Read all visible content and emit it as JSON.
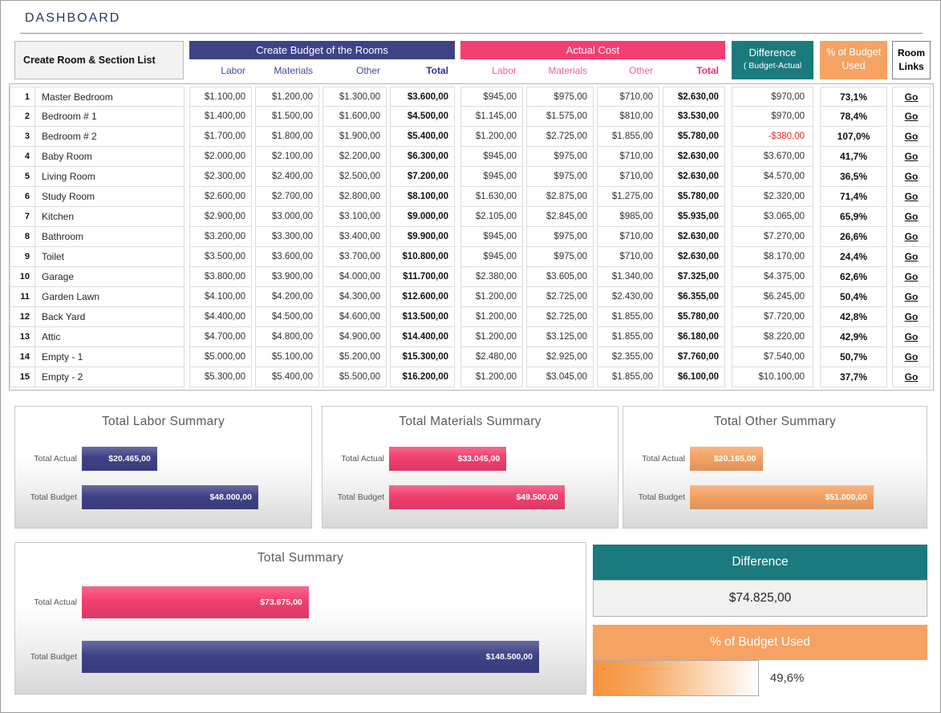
{
  "title": "DASHBOARD",
  "colors": {
    "navy": "#3e4287",
    "pink": "#f23f6f",
    "teal": "#1a7a7d",
    "orange": "#f5a263"
  },
  "header": {
    "room_list": "Create Room & Section List",
    "budget_title": "Create Budget  of the Rooms",
    "budget_cols": {
      "labor": "Labor",
      "materials": "Materials",
      "other": "Other",
      "total": "Total"
    },
    "actual_title": "Actual Cost",
    "actual_cols": {
      "labor": "Labor",
      "materials": "Materials",
      "other": "Other",
      "total": "Total"
    },
    "difference_line1": "Difference",
    "difference_line2": "( Budget-Actual",
    "pct_line1": "% of Budget",
    "pct_line2": "Used",
    "room_links_line1": "Room",
    "room_links_line2": "Links"
  },
  "go_label": "Go",
  "rows": [
    {
      "num": "1",
      "name": "Master Bedroom",
      "b_labor": "$1.100,00",
      "b_materials": "$1.200,00",
      "b_other": "$1.300,00",
      "b_total": "$3.600,00",
      "a_labor": "$945,00",
      "a_materials": "$975,00",
      "a_other": "$710,00",
      "a_total": "$2.630,00",
      "diff": "$970,00",
      "pct": "73,1%"
    },
    {
      "num": "2",
      "name": "Bedroom # 1",
      "b_labor": "$1.400,00",
      "b_materials": "$1.500,00",
      "b_other": "$1.600,00",
      "b_total": "$4.500,00",
      "a_labor": "$1.145,00",
      "a_materials": "$1.575,00",
      "a_other": "$810,00",
      "a_total": "$3.530,00",
      "diff": "$970,00",
      "pct": "78,4%"
    },
    {
      "num": "3",
      "name": "Bedroom # 2",
      "b_labor": "$1.700,00",
      "b_materials": "$1.800,00",
      "b_other": "$1.900,00",
      "b_total": "$5.400,00",
      "a_labor": "$1.200,00",
      "a_materials": "$2.725,00",
      "a_other": "$1.855,00",
      "a_total": "$5.780,00",
      "diff": "-$380,00",
      "pct": "107,0%"
    },
    {
      "num": "4",
      "name": "Baby Room",
      "b_labor": "$2.000,00",
      "b_materials": "$2.100,00",
      "b_other": "$2.200,00",
      "b_total": "$6.300,00",
      "a_labor": "$945,00",
      "a_materials": "$975,00",
      "a_other": "$710,00",
      "a_total": "$2.630,00",
      "diff": "$3.670,00",
      "pct": "41,7%"
    },
    {
      "num": "5",
      "name": "Living Room",
      "b_labor": "$2.300,00",
      "b_materials": "$2.400,00",
      "b_other": "$2.500,00",
      "b_total": "$7.200,00",
      "a_labor": "$945,00",
      "a_materials": "$975,00",
      "a_other": "$710,00",
      "a_total": "$2.630,00",
      "diff": "$4.570,00",
      "pct": "36,5%"
    },
    {
      "num": "6",
      "name": "Study Room",
      "b_labor": "$2.600,00",
      "b_materials": "$2.700,00",
      "b_other": "$2.800,00",
      "b_total": "$8.100,00",
      "a_labor": "$1.630,00",
      "a_materials": "$2.875,00",
      "a_other": "$1.275,00",
      "a_total": "$5.780,00",
      "diff": "$2.320,00",
      "pct": "71,4%"
    },
    {
      "num": "7",
      "name": "Kitchen",
      "b_labor": "$2.900,00",
      "b_materials": "$3.000,00",
      "b_other": "$3.100,00",
      "b_total": "$9.000,00",
      "a_labor": "$2.105,00",
      "a_materials": "$2.845,00",
      "a_other": "$985,00",
      "a_total": "$5.935,00",
      "diff": "$3.065,00",
      "pct": "65,9%"
    },
    {
      "num": "8",
      "name": "Bathroom",
      "b_labor": "$3.200,00",
      "b_materials": "$3.300,00",
      "b_other": "$3.400,00",
      "b_total": "$9.900,00",
      "a_labor": "$945,00",
      "a_materials": "$975,00",
      "a_other": "$710,00",
      "a_total": "$2.630,00",
      "diff": "$7.270,00",
      "pct": "26,6%"
    },
    {
      "num": "9",
      "name": "Toilet",
      "b_labor": "$3.500,00",
      "b_materials": "$3.600,00",
      "b_other": "$3.700,00",
      "b_total": "$10.800,00",
      "a_labor": "$945,00",
      "a_materials": "$975,00",
      "a_other": "$710,00",
      "a_total": "$2.630,00",
      "diff": "$8.170,00",
      "pct": "24,4%"
    },
    {
      "num": "10",
      "name": "Garage",
      "b_labor": "$3.800,00",
      "b_materials": "$3.900,00",
      "b_other": "$4.000,00",
      "b_total": "$11.700,00",
      "a_labor": "$2.380,00",
      "a_materials": "$3.605,00",
      "a_other": "$1.340,00",
      "a_total": "$7.325,00",
      "diff": "$4.375,00",
      "pct": "62,6%"
    },
    {
      "num": "11",
      "name": "Garden Lawn",
      "b_labor": "$4.100,00",
      "b_materials": "$4.200,00",
      "b_other": "$4.300,00",
      "b_total": "$12.600,00",
      "a_labor": "$1.200,00",
      "a_materials": "$2.725,00",
      "a_other": "$2.430,00",
      "a_total": "$6.355,00",
      "diff": "$6.245,00",
      "pct": "50,4%"
    },
    {
      "num": "12",
      "name": "Back Yard",
      "b_labor": "$4.400,00",
      "b_materials": "$4.500,00",
      "b_other": "$4.600,00",
      "b_total": "$13.500,00",
      "a_labor": "$1.200,00",
      "a_materials": "$2.725,00",
      "a_other": "$1.855,00",
      "a_total": "$5.780,00",
      "diff": "$7.720,00",
      "pct": "42,8%"
    },
    {
      "num": "13",
      "name": "Attic",
      "b_labor": "$4.700,00",
      "b_materials": "$4.800,00",
      "b_other": "$4.900,00",
      "b_total": "$14.400,00",
      "a_labor": "$1.200,00",
      "a_materials": "$3.125,00",
      "a_other": "$1.855,00",
      "a_total": "$6.180,00",
      "diff": "$8.220,00",
      "pct": "42,9%"
    },
    {
      "num": "14",
      "name": "Empty - 1",
      "b_labor": "$5.000,00",
      "b_materials": "$5.100,00",
      "b_other": "$5.200,00",
      "b_total": "$15.300,00",
      "a_labor": "$2.480,00",
      "a_materials": "$2.925,00",
      "a_other": "$2.355,00",
      "a_total": "$7.760,00",
      "diff": "$7.540,00",
      "pct": "50,7%"
    },
    {
      "num": "15",
      "name": "Empty - 2",
      "b_labor": "$5.300,00",
      "b_materials": "$5.400,00",
      "b_other": "$5.500,00",
      "b_total": "$16.200,00",
      "a_labor": "$1.200,00",
      "a_materials": "$3.045,00",
      "a_other": "$1.855,00",
      "a_total": "$6.100,00",
      "diff": "$10.100,00",
      "pct": "37,7%"
    }
  ],
  "labels": {
    "actual": "Total Actual",
    "budget": "Total Budget"
  },
  "summaries": [
    {
      "title": "Total Labor Summary",
      "actual": 20465,
      "budget": 48000,
      "actual_text": "$20.465,00",
      "budget_text": "$48.000,00",
      "color": "#3e4287"
    },
    {
      "title": "Total Materials Summary",
      "actual": 33045,
      "budget": 49500,
      "actual_text": "$33.045,00",
      "budget_text": "$49.500,00",
      "color": "#f23f6f"
    },
    {
      "title": "Total Other Summary",
      "actual": 20165,
      "budget": 51000,
      "actual_text": "$20.165,00",
      "budget_text": "$51.000,00",
      "color": "#f5a263"
    },
    {
      "title": "Total Summary",
      "actual": 73675,
      "budget": 148500,
      "actual_text": "$73.675,00",
      "budget_text": "$148.500,00",
      "actual_color": "#f23f6f",
      "budget_color": "#3e4287"
    }
  ],
  "difference_card": {
    "title": "Difference",
    "value": "$74.825,00"
  },
  "pct_card": {
    "title": "% of Budget Used",
    "value": "49,6%",
    "pct": 49.6
  }
}
